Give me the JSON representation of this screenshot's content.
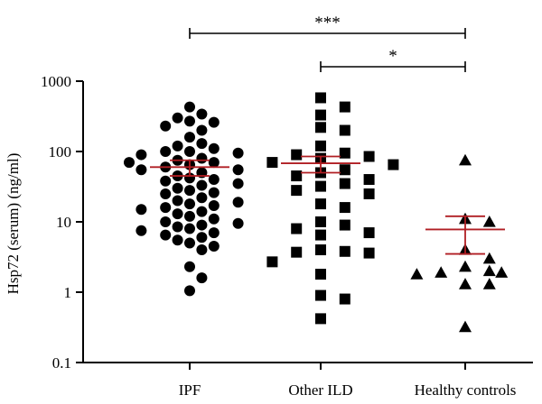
{
  "chart_data": {
    "type": "scatter",
    "ylabel": "Hsp72 (serum) (ng/ml)",
    "yscale": "log",
    "ylim": [
      0.1,
      1000
    ],
    "yticks": [
      {
        "value": 0.1,
        "label": "0.1"
      },
      {
        "value": 1,
        "label": "1"
      },
      {
        "value": 10,
        "label": "10"
      },
      {
        "value": 100,
        "label": "100"
      },
      {
        "value": 1000,
        "label": "1000"
      }
    ],
    "categories": [
      "IPF",
      "Other ILD",
      "Healthy controls"
    ],
    "colors": {
      "points": "#000000",
      "summary": "#b01e23"
    },
    "grid": false,
    "groups": [
      {
        "name": "IPF",
        "marker": "circle",
        "mean": 60,
        "error_low": 45,
        "error_high": 75,
        "points": [
          430,
          300,
          260,
          340,
          230,
          200,
          270,
          160,
          130,
          120,
          110,
          100,
          100,
          95,
          90,
          80,
          75,
          70,
          70,
          65,
          60,
          55,
          55,
          50,
          45,
          42,
          40,
          38,
          35,
          33,
          30,
          28,
          26,
          25,
          22,
          20,
          19,
          18,
          17,
          16,
          15,
          14,
          13,
          12,
          11,
          10,
          9.5,
          9,
          8.5,
          8,
          7.5,
          7,
          6.5,
          6,
          5.5,
          5,
          4.5,
          4,
          2.3,
          1.6,
          1.05
        ]
      },
      {
        "name": "Other ILD",
        "marker": "square",
        "mean": 68,
        "error_low": 50,
        "error_high": 85,
        "points": [
          580,
          430,
          330,
          220,
          200,
          120,
          95,
          90,
          85,
          80,
          70,
          65,
          55,
          50,
          45,
          40,
          35,
          32,
          28,
          25,
          18,
          16,
          10,
          9,
          8,
          7,
          6.5,
          4,
          3.8,
          3.7,
          3.6,
          2.7,
          1.8,
          0.9,
          0.8,
          0.42
        ]
      },
      {
        "name": "Healthy controls",
        "marker": "triangle",
        "mean": 7.8,
        "error_low": 3.5,
        "error_high": 12,
        "points": [
          75,
          11,
          10,
          4,
          3,
          2.3,
          2,
          1.9,
          1.9,
          1.8,
          1.3,
          1.3,
          0.32
        ]
      }
    ],
    "annotations": [
      {
        "from": "IPF",
        "to": "Healthy controls",
        "label": "***"
      },
      {
        "from": "Other ILD",
        "to": "Healthy controls",
        "label": "*"
      }
    ]
  }
}
